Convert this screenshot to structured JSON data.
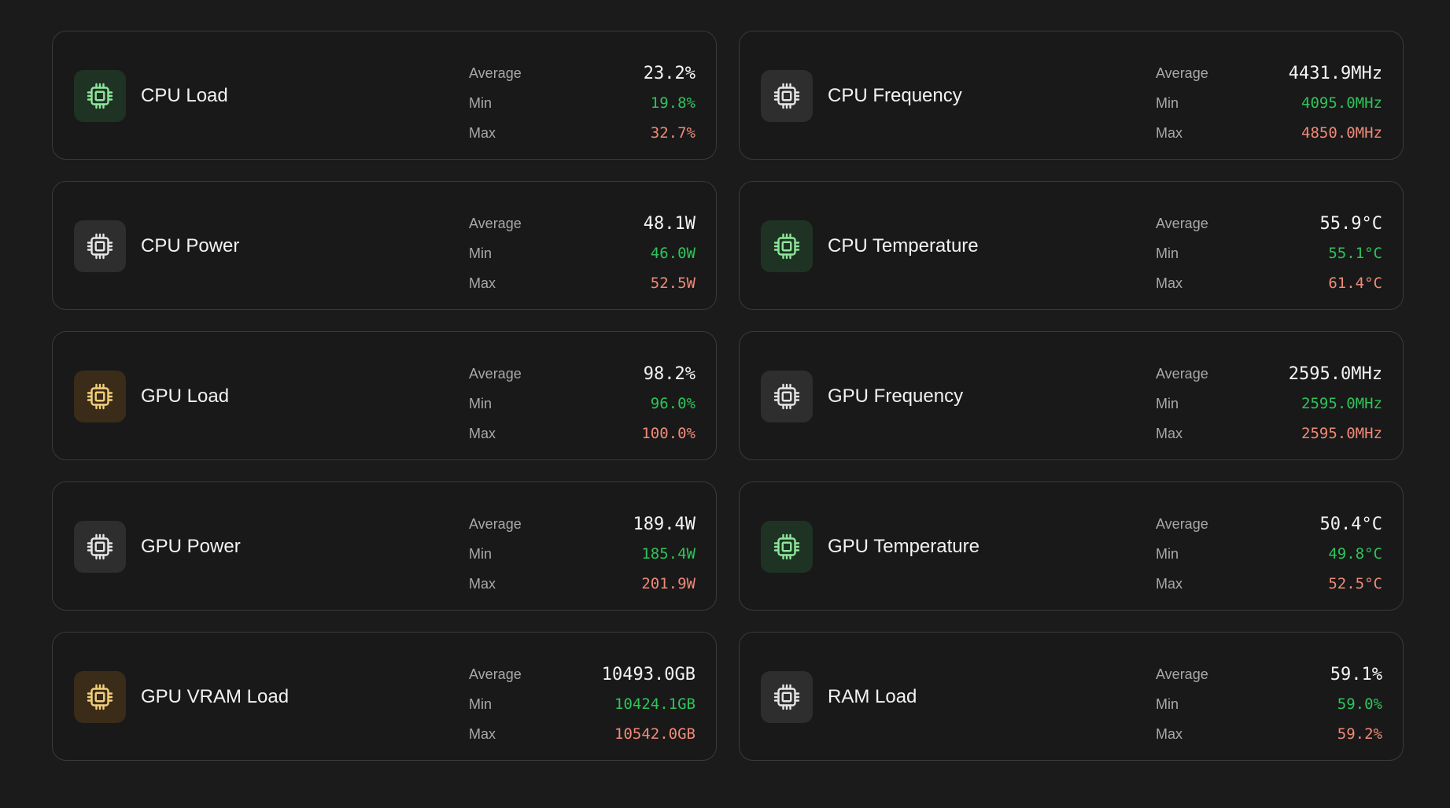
{
  "labels": {
    "average": "Average",
    "min": "Min",
    "max": "Max"
  },
  "colors": {
    "background": "#1b1b1b",
    "min_value": "#2ec45a",
    "max_value": "#f08a78",
    "icon_green": "#8ee59a",
    "icon_amber": "#f2cf7a",
    "icon_gray": "#e6e6e6"
  },
  "cards": [
    {
      "title": "CPU Load",
      "icon": "chip-icon",
      "icon_tint": "green",
      "average": "23.2%",
      "min": "19.8%",
      "max": "32.7%"
    },
    {
      "title": "CPU Frequency",
      "icon": "chip-icon",
      "icon_tint": "gray",
      "average": "4431.9MHz",
      "min": "4095.0MHz",
      "max": "4850.0MHz"
    },
    {
      "title": "CPU Power",
      "icon": "chip-icon",
      "icon_tint": "gray",
      "average": "48.1W",
      "min": "46.0W",
      "max": "52.5W"
    },
    {
      "title": "CPU Temperature",
      "icon": "chip-icon",
      "icon_tint": "green",
      "average": "55.9°C",
      "min": "55.1°C",
      "max": "61.4°C"
    },
    {
      "title": "GPU Load",
      "icon": "chip-icon",
      "icon_tint": "amber",
      "average": "98.2%",
      "min": "96.0%",
      "max": "100.0%"
    },
    {
      "title": "GPU Frequency",
      "icon": "chip-icon",
      "icon_tint": "gray",
      "average": "2595.0MHz",
      "min": "2595.0MHz",
      "max": "2595.0MHz"
    },
    {
      "title": "GPU Power",
      "icon": "chip-icon",
      "icon_tint": "gray",
      "average": "189.4W",
      "min": "185.4W",
      "max": "201.9W"
    },
    {
      "title": "GPU Temperature",
      "icon": "chip-icon",
      "icon_tint": "green",
      "average": "50.4°C",
      "min": "49.8°C",
      "max": "52.5°C"
    },
    {
      "title": "GPU VRAM Load",
      "icon": "chip-icon",
      "icon_tint": "amber",
      "average": "10493.0GB",
      "min": "10424.1GB",
      "max": "10542.0GB"
    },
    {
      "title": "RAM Load",
      "icon": "chip-icon",
      "icon_tint": "gray",
      "average": "59.1%",
      "min": "59.0%",
      "max": "59.2%"
    }
  ]
}
